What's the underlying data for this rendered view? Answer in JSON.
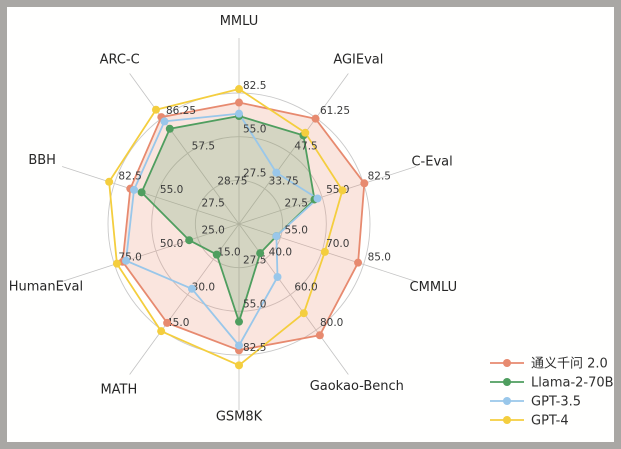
{
  "colors": {
    "frame": "#a9a7a4",
    "background": "#fffffe",
    "grid": "#c9c9c9",
    "spoke": "#c3c3c3",
    "tick_text": "#3c3c3c",
    "category_text": "#262626",
    "legend_text": "#2f2f2f"
  },
  "chart_data": {
    "type": "radar",
    "title": "",
    "categories": [
      "MMLU",
      "AGIEval",
      "C-Eval",
      "CMMLU",
      "Gaokao-Bench",
      "GSM8K",
      "MATH",
      "HumanEval",
      "BBH",
      "ARC-C"
    ],
    "rings": [
      0.3333,
      0.6667,
      1.0
    ],
    "axes": [
      {
        "name": "MMLU",
        "min": 0,
        "max": 82.5,
        "ticks": [
          "27.5",
          "55.0",
          "82.5"
        ]
      },
      {
        "name": "AGIEval",
        "min": 20,
        "max": 61.25,
        "ticks": [
          "33.75",
          "47.5",
          "61.25"
        ]
      },
      {
        "name": "C-Eval",
        "min": 0,
        "max": 82.5,
        "ticks": [
          "27.5",
          "55.0",
          "82.5"
        ]
      },
      {
        "name": "CMMLU",
        "min": 40,
        "max": 85.0,
        "ticks": [
          "55.0",
          "70.0",
          "85.0"
        ]
      },
      {
        "name": "Gaokao-Bench",
        "min": 20,
        "max": 80.0,
        "ticks": [
          "40.0",
          "60.0",
          "80.0"
        ]
      },
      {
        "name": "GSM8K",
        "min": 0,
        "max": 82.5,
        "ticks": [
          "27.5",
          "55.0",
          "82.5"
        ]
      },
      {
        "name": "MATH",
        "min": 0,
        "max": 45.0,
        "ticks": [
          "15.0",
          "30.0",
          "45.0"
        ]
      },
      {
        "name": "HumanEval",
        "min": 0,
        "max": 75.0,
        "ticks": [
          "25.0",
          "50.0",
          "75.0"
        ]
      },
      {
        "name": "BBH",
        "min": 0,
        "max": 82.5,
        "ticks": [
          "27.5",
          "55.0",
          "82.5"
        ]
      },
      {
        "name": "ARC-C",
        "min": 0,
        "max": 86.25,
        "ticks": [
          "28.75",
          "57.5",
          "86.25"
        ]
      }
    ],
    "series": [
      {
        "name": "通义千问 2.0",
        "color": "#e78a6f",
        "fill": true,
        "fill_opacity": 0.22,
        "values": [
          76.5,
          61.0,
          83.0,
          83.0,
          83.0,
          79.5,
          42.0,
          70.0,
          72.0,
          87.0
        ]
      },
      {
        "name": "Llama-2-70B",
        "color": "#4f9e5f",
        "fill": true,
        "fill_opacity": 0.22,
        "values": [
          68.0,
          54.5,
          50.0,
          53.5,
          36.5,
          61.5,
          13.0,
          30.0,
          64.5,
          77.5
        ]
      },
      {
        "name": "GPT-3.5",
        "color": "#99c7ea",
        "fill": false,
        "fill_opacity": 0,
        "values": [
          69.5,
          40.0,
          52.0,
          53.5,
          50.0,
          76.5,
          27.5,
          68.0,
          69.5,
          83.5
        ]
      },
      {
        "name": "GPT-4",
        "color": "#f4ce3e",
        "fill": false,
        "fill_opacity": 0,
        "values": [
          85.0,
          55.5,
          68.5,
          71.0,
          70.5,
          89.0,
          45.5,
          73.5,
          86.0,
          93.0
        ]
      }
    ],
    "legend_position": "bottom-right",
    "grid": true
  }
}
